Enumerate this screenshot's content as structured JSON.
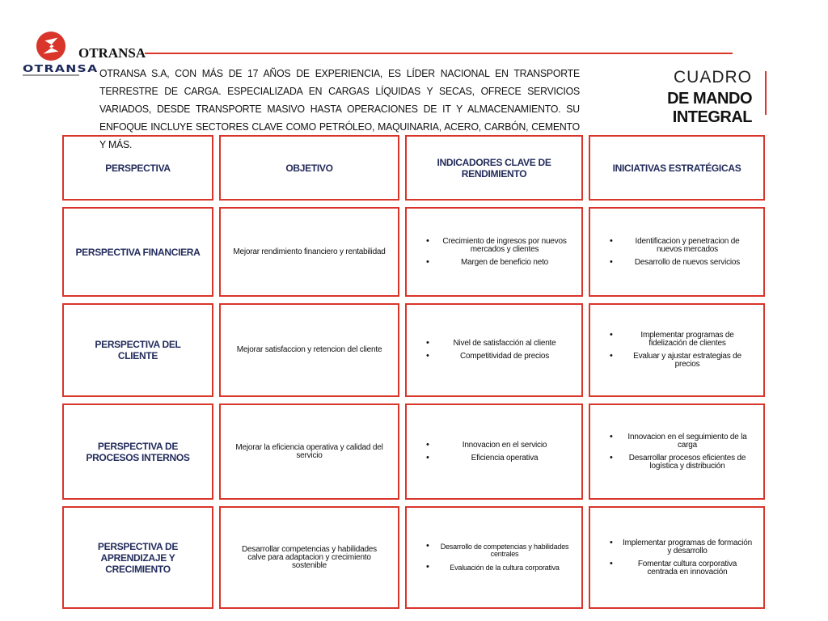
{
  "header": {
    "brand": "OTRANSA",
    "logo_text": "OTRANSA",
    "description": "OTRANSA S.A, con más de 17 años de experiencia, es líder nacional en transporte terrestre de carga. Especializada en cargas líquidas y secas, ofrece servicios variados, desde transporte masivo hasta operaciones de IT y almacenamiento. Su enfoque incluye sectores clave como petróleo, maquinaria, acero, carbón, cemento y más.",
    "title_line1": "CUADRO",
    "title_line2": "DE MANDO INTEGRAL",
    "accent": "#d9352b",
    "heading_color": "#232c5c"
  },
  "table": {
    "headers": [
      "PERSPECTIVA",
      "OBJETIVO",
      "INDICADORES CLAVE DE RENDIMIENTO",
      "INICIATIVAS ESTRATÉGICAS"
    ],
    "rows": [
      {
        "perspective": "PERSPECTIVA FINANCIERA",
        "objective": "Mejorar rendimiento financiero y rentabilidad",
        "kpis": [
          "Crecimiento de ingresos por nuevos mercados y clientes",
          "Margen de beneficio neto"
        ],
        "initiatives": [
          "Identificacion y penetracion de nuevos mercados",
          "Desarrollo de nuevos servicios"
        ]
      },
      {
        "perspective": "PERSPECTIVA DEL CLIENTE",
        "objective": "Mejorar satisfaccion y retencion del cliente",
        "kpis": [
          "Nivel de satisfacción al cliente",
          "Competitividad de precios"
        ],
        "initiatives": [
          "Implementar programas de fidelización de clientes",
          "Evaluar y ajustar estrategias de precios"
        ]
      },
      {
        "perspective": "PERSPECTIVA DE PROCESOS INTERNOS",
        "objective": "Mejorar la eficiencia operativa y calidad del servicio",
        "kpis": [
          "Innovacion en el servicio",
          "Eficiencia operativa"
        ],
        "initiatives": [
          "Innovacion en el seguimiento de la carga",
          "Desarrollar procesos eficientes de logística y distribución"
        ]
      },
      {
        "perspective": "PERSPECTIVA DE APRENDIZAJE Y CRECIMIENTO",
        "objective": "Desarrollar competencias y habilidades calve para adaptacion y crecimiento sostenible",
        "kpis": [
          "Desarrollo de competencias y habilidades centrales",
          "Evaluación de la cultura corporativa"
        ],
        "initiatives": [
          "Implementar programas de formación y desarrollo",
          "Fomentar cultura corporativa centrada en innovación"
        ]
      }
    ]
  }
}
